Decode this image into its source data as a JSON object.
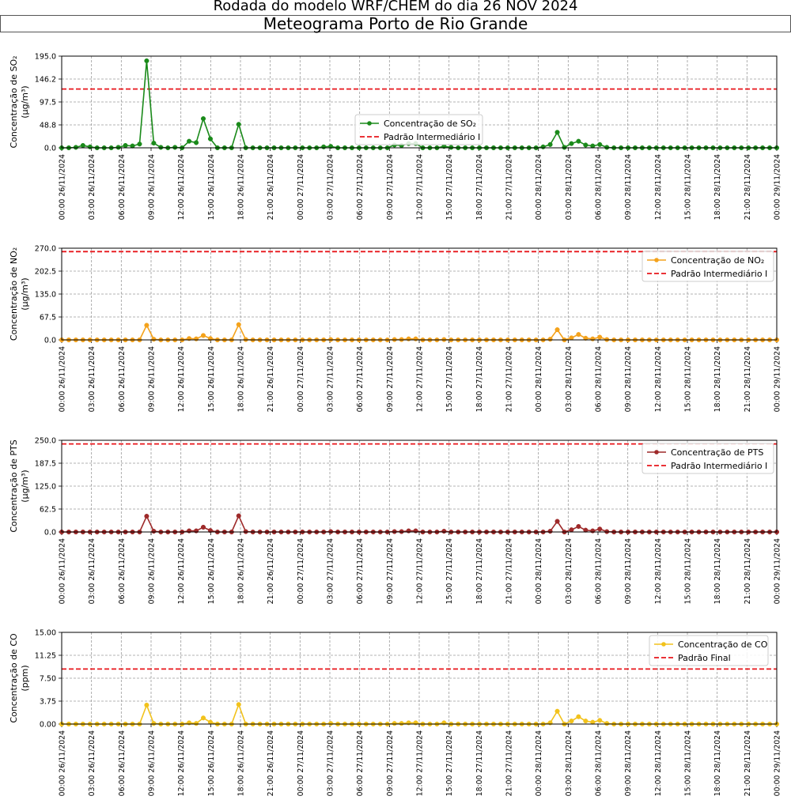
{
  "suptitle": "Rodada do modelo WRF/CHEM do dia 26 NOV 2024",
  "title": "Meteograma Porto de Rio Grande",
  "x_tick_labels": [
    "00:00 26/11/2024",
    "03:00 26/11/2024",
    "06:00 26/11/2024",
    "09:00 26/11/2024",
    "12:00 26/11/2024",
    "15:00 26/11/2024",
    "18:00 26/11/2024",
    "21:00 26/11/2024",
    "00:00 27/11/2024",
    "03:00 27/11/2024",
    "06:00 27/11/2024",
    "09:00 27/11/2024",
    "12:00 27/11/2024",
    "15:00 27/11/2024",
    "18:00 27/11/2024",
    "21:00 27/11/2024",
    "00:00 28/11/2024",
    "03:00 28/11/2024",
    "06:00 28/11/2024",
    "09:00 28/11/2024",
    "12:00 28/11/2024",
    "15:00 28/11/2024",
    "18:00 28/11/2024",
    "21:00 28/11/2024",
    "00:00 29/11/2024"
  ],
  "chart_data": [
    {
      "type": "line",
      "ylabel": [
        "Concentração de SO₂",
        "(μg/m³)"
      ],
      "ylim": [
        0,
        195
      ],
      "yticks": [
        "0.0",
        "48.8",
        "97.5",
        "146.2",
        "195.0"
      ],
      "grid": true,
      "legend_position": "center-right",
      "series": [
        {
          "name": "Concentração de SO₂",
          "color": "#1a8a1a",
          "marker": "circle",
          "values": [
            0,
            0,
            1,
            5,
            2,
            0,
            0,
            0,
            1,
            5,
            4,
            8,
            185,
            10,
            1,
            0,
            1,
            0,
            14,
            11,
            62,
            19,
            0,
            0,
            0,
            50,
            0,
            0,
            0,
            0,
            0,
            0,
            0,
            0,
            0,
            0,
            0,
            2,
            3,
            0,
            0,
            0,
            0,
            0,
            0,
            0,
            0,
            6,
            5,
            9,
            9,
            0,
            0,
            0,
            3,
            1,
            0,
            0,
            0,
            0,
            0,
            0,
            0,
            0,
            0,
            0,
            0,
            0,
            2,
            7,
            33,
            1,
            9,
            14,
            6,
            4,
            7,
            1,
            0,
            0,
            0,
            0,
            0,
            0,
            0,
            0,
            0,
            0,
            0,
            0,
            0,
            0,
            0,
            0,
            0,
            0,
            0,
            0,
            0,
            0,
            0,
            0
          ]
        }
      ],
      "reference": {
        "name": "Padrão Intermediário I",
        "value": 125,
        "color": "#e8161b"
      }
    },
    {
      "type": "line",
      "ylabel": [
        "Concentração de NO₂",
        "(μg/m³)"
      ],
      "ylim": [
        0,
        270
      ],
      "yticks": [
        "0.0",
        "67.5",
        "135.0",
        "202.5",
        "270.0"
      ],
      "grid": true,
      "legend_position": "top-right",
      "series": [
        {
          "name": "Concentração de NO₂",
          "color": "#f4a21b",
          "marker": "circle",
          "values": [
            0,
            0,
            0,
            0,
            0,
            0,
            0,
            0,
            0,
            0,
            0,
            0,
            43,
            2,
            0,
            0,
            0,
            0,
            4,
            3,
            13,
            4,
            0,
            0,
            0,
            45,
            1,
            0,
            0,
            0,
            0,
            0,
            0,
            0,
            0,
            0,
            0,
            0,
            1,
            0,
            0,
            0,
            0,
            0,
            0,
            0,
            0,
            1,
            1,
            3,
            3,
            0,
            0,
            0,
            1,
            0,
            0,
            0,
            0,
            0,
            0,
            0,
            0,
            0,
            0,
            0,
            0,
            0,
            0,
            2,
            30,
            0,
            6,
            16,
            5,
            3,
            8,
            1,
            0,
            0,
            0,
            0,
            0,
            0,
            0,
            0,
            0,
            0,
            0,
            0,
            0,
            0,
            0,
            0,
            0,
            0,
            0,
            0,
            0,
            0,
            0,
            0
          ]
        }
      ],
      "reference": {
        "name": "Padrão Intermediário I",
        "value": 260,
        "color": "#e8161b"
      }
    },
    {
      "type": "line",
      "ylabel": [
        "Concentração de PTS",
        "(μg/m³)"
      ],
      "ylim": [
        0,
        250
      ],
      "yticks": [
        "0.0",
        "62.5",
        "125.0",
        "187.5",
        "250.0"
      ],
      "grid": true,
      "legend_position": "top-right",
      "series": [
        {
          "name": "Concentração de PTS",
          "color": "#9e2a2a",
          "marker": "circle",
          "values": [
            0,
            0,
            0,
            0,
            0,
            0,
            0,
            0,
            0,
            0,
            0,
            0,
            43,
            2,
            0,
            0,
            0,
            0,
            3,
            3,
            13,
            4,
            0,
            0,
            0,
            44,
            1,
            0,
            0,
            0,
            0,
            0,
            0,
            0,
            0,
            0,
            0,
            0,
            1,
            0,
            0,
            0,
            0,
            0,
            0,
            0,
            0,
            1,
            1,
            3,
            3,
            0,
            0,
            0,
            2,
            0,
            0,
            0,
            0,
            0,
            0,
            0,
            0,
            0,
            0,
            0,
            0,
            0,
            0,
            2,
            29,
            0,
            6,
            15,
            5,
            3,
            8,
            1,
            0,
            0,
            0,
            0,
            0,
            0,
            0,
            0,
            0,
            0,
            0,
            0,
            0,
            0,
            0,
            0,
            0,
            0,
            0,
            0,
            0,
            0,
            0,
            0
          ]
        }
      ],
      "reference": {
        "name": "Padrão Intermediário I",
        "value": 240,
        "color": "#e8161b"
      }
    },
    {
      "type": "line",
      "ylabel": [
        "Concentração de CO",
        "(ppm)"
      ],
      "ylim": [
        0,
        15
      ],
      "yticks": [
        "0.00",
        "3.75",
        "7.50",
        "11.25",
        "15.00"
      ],
      "grid": true,
      "legend_position": "top-right",
      "series": [
        {
          "name": "Concentração de CO",
          "color": "#f2c21b",
          "marker": "circle",
          "values": [
            0,
            0,
            0,
            0,
            0,
            0,
            0,
            0,
            0,
            0,
            0,
            0,
            3.1,
            0.1,
            0,
            0,
            0,
            0,
            0.2,
            0.1,
            1.0,
            0.3,
            0,
            0,
            0,
            3.2,
            0,
            0,
            0,
            0,
            0,
            0,
            0,
            0,
            0,
            0,
            0,
            0,
            0.1,
            0,
            0,
            0,
            0,
            0,
            0,
            0,
            0,
            0.1,
            0.1,
            0.2,
            0.2,
            0,
            0,
            0,
            0.2,
            0,
            0,
            0,
            0,
            0,
            0,
            0,
            0,
            0,
            0,
            0,
            0,
            0,
            0,
            0.2,
            2.1,
            0,
            0.5,
            1.2,
            0.5,
            0.3,
            0.6,
            0.1,
            0,
            0,
            0,
            0,
            0,
            0,
            0,
            0,
            0,
            0,
            0,
            0,
            0,
            0,
            0,
            0,
            0,
            0,
            0,
            0,
            0,
            0,
            0,
            0
          ]
        }
      ],
      "reference": {
        "name": "Padrão Final",
        "value": 9,
        "color": "#e8161b"
      }
    }
  ]
}
